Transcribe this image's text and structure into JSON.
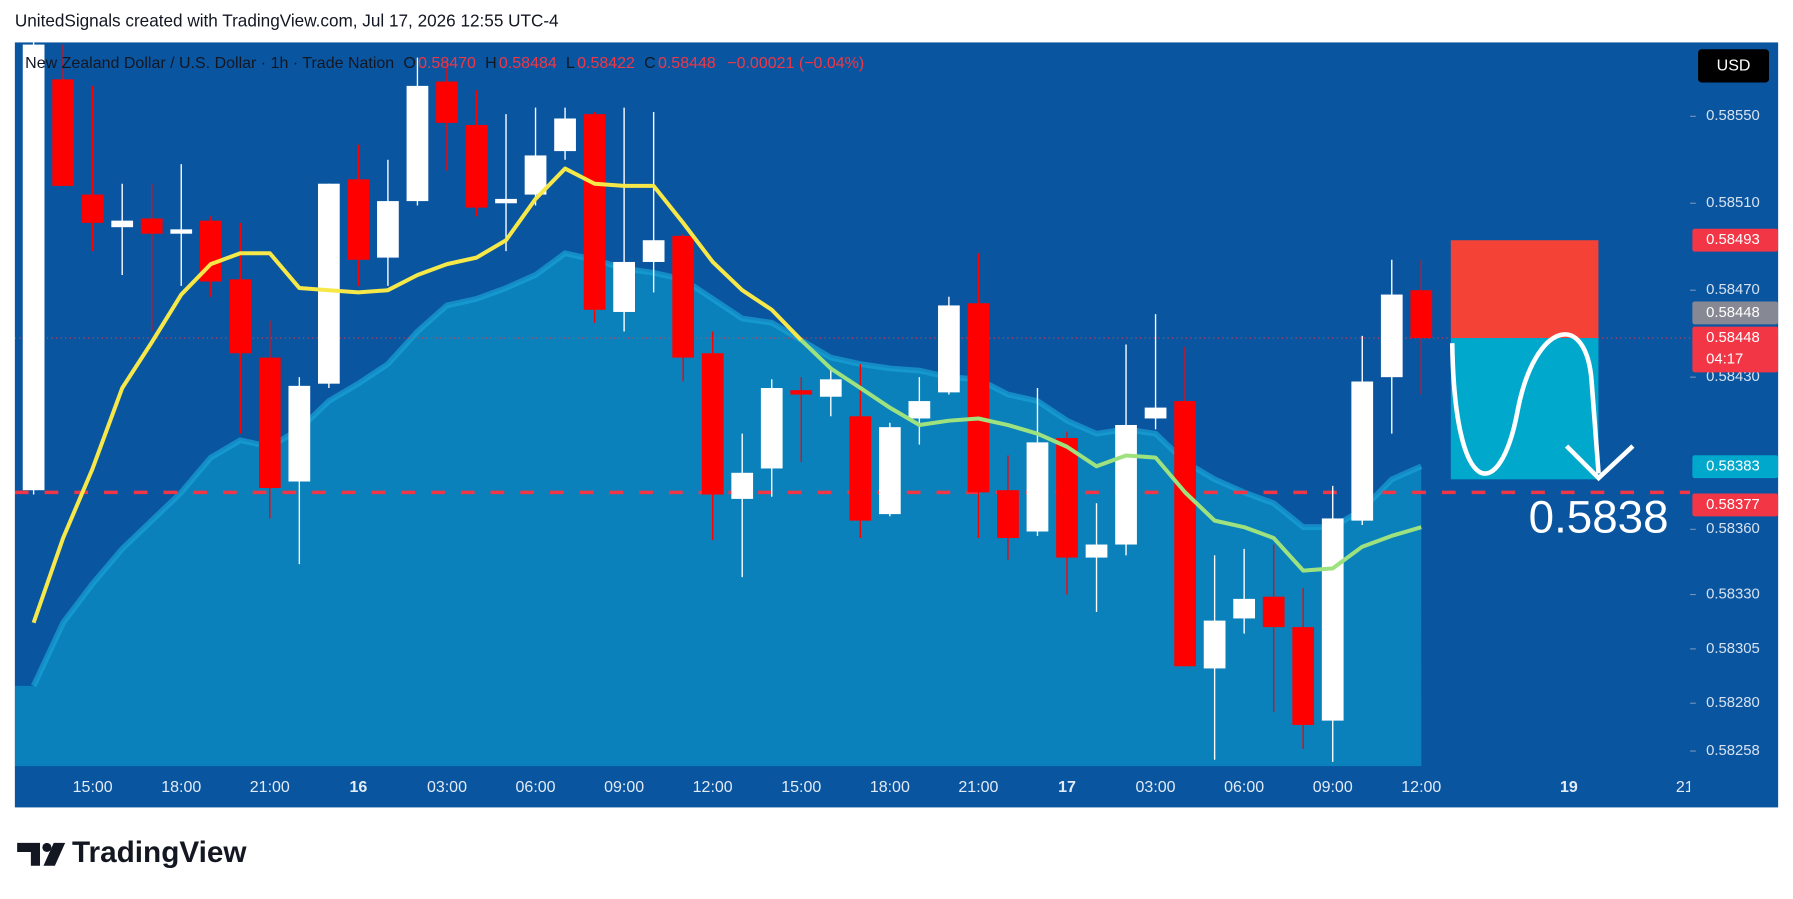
{
  "chart_data": {
    "type": "candlestick",
    "attribution": "UnitedSignals created with TradingView.com, Jul 17, 2026 12:55 UTC-4",
    "title": "New Zealand Dollar / U.S. Dollar · 1h · Trade Nation",
    "ohlc_header": [
      {
        "label": "O",
        "value": "0.58470"
      },
      {
        "label": "H",
        "value": "0.58484"
      },
      {
        "label": "L",
        "value": "0.58422"
      },
      {
        "label": "C",
        "value": "0.58448"
      }
    ],
    "change": "−0.00021 (−0.04%)",
    "currency": "USD",
    "brand": "TradingView",
    "annotation": "0.5838",
    "categories": [
      null,
      null,
      "15:00",
      null,
      null,
      "18:00",
      null,
      null,
      "21:00",
      null,
      null,
      "16",
      null,
      null,
      "03:00",
      null,
      null,
      "06:00",
      null,
      null,
      "09:00",
      null,
      null,
      "12:00",
      null,
      null,
      "15:00",
      null,
      null,
      "18:00",
      null,
      null,
      "21:00",
      null,
      null,
      "17",
      null,
      null,
      "03:00",
      null,
      null,
      "06:00",
      null,
      null,
      "09:00",
      null,
      null,
      "12:00",
      null,
      null,
      null,
      null,
      "19",
      null,
      null,
      null,
      "21:"
    ],
    "open": [
      0.58378,
      0.58567,
      0.58514,
      0.58499,
      0.58503,
      0.58496,
      0.58502,
      0.58475,
      0.58439,
      0.58382,
      0.58427,
      0.58521,
      0.58485,
      0.58511,
      0.58566,
      0.58546,
      0.5851,
      0.58514,
      0.58534,
      0.58551,
      0.5846,
      0.58483,
      0.58495,
      0.58441,
      0.58374,
      0.58388,
      0.58424,
      0.58421,
      0.58412,
      0.58367,
      0.58411,
      0.58423,
      0.58464,
      0.58378,
      0.58359,
      0.58402,
      0.58347,
      0.58353,
      0.58411,
      0.58419,
      0.58296,
      0.58319,
      0.58329,
      0.58315,
      0.58272,
      0.58364,
      0.5843,
      0.5847,
      null,
      null,
      null,
      null,
      null,
      null,
      null,
      null,
      null
    ],
    "high": [
      0.58584,
      0.58583,
      0.58564,
      0.58519,
      0.58519,
      0.58528,
      0.58504,
      0.58501,
      0.58456,
      0.5843,
      0.58519,
      0.58537,
      0.5853,
      0.58577,
      0.58575,
      0.58562,
      0.58551,
      0.58554,
      0.58554,
      0.58552,
      0.58554,
      0.58552,
      0.58496,
      0.58451,
      0.58404,
      0.58429,
      0.5843,
      0.58435,
      0.58436,
      0.58409,
      0.5843,
      0.58467,
      0.58487,
      0.58394,
      0.58425,
      0.58405,
      0.58372,
      0.58445,
      0.58459,
      0.58444,
      0.58348,
      0.58351,
      0.58353,
      0.58333,
      0.5838,
      0.58449,
      0.58484,
      0.58484,
      null,
      null,
      null,
      null,
      null,
      null,
      null,
      null,
      null
    ],
    "low": [
      0.58376,
      0.58518,
      0.58488,
      0.58477,
      0.58451,
      0.58472,
      0.58467,
      0.58404,
      0.58365,
      0.58344,
      0.58425,
      0.58472,
      0.58472,
      0.58509,
      0.58525,
      0.58504,
      0.58488,
      0.58509,
      0.5853,
      0.58455,
      0.58451,
      0.58469,
      0.58428,
      0.58355,
      0.58338,
      0.58375,
      0.58391,
      0.58412,
      0.58356,
      0.58366,
      0.58399,
      0.58422,
      0.58356,
      0.58346,
      0.58357,
      0.5833,
      0.58322,
      0.58348,
      0.58406,
      0.58297,
      0.58254,
      0.58312,
      0.58276,
      0.58259,
      0.58253,
      0.58362,
      0.58404,
      0.58422,
      null,
      null,
      null,
      null,
      null,
      null,
      null,
      null,
      null
    ],
    "close": [
      0.58583,
      0.58518,
      0.58501,
      0.58502,
      0.58496,
      0.58498,
      0.58474,
      0.58441,
      0.58379,
      0.58426,
      0.58519,
      0.58484,
      0.58511,
      0.58564,
      0.58547,
      0.58508,
      0.58512,
      0.58532,
      0.58549,
      0.58461,
      0.58483,
      0.58493,
      0.58439,
      0.58376,
      0.58386,
      0.58425,
      0.58422,
      0.58429,
      0.58364,
      0.58407,
      0.58419,
      0.58463,
      0.58377,
      0.58356,
      0.584,
      0.58347,
      0.58353,
      0.58408,
      0.58416,
      0.58297,
      0.58318,
      0.58328,
      0.58315,
      0.5827,
      0.58365,
      0.58428,
      0.58468,
      0.58448,
      null,
      null,
      null,
      null,
      null,
      null,
      null,
      null,
      null
    ],
    "up_color": "#ffffff",
    "down_color": "#ff0000",
    "area": {
      "color": "#0a86bd",
      "edge_color": "#1aa3d6",
      "values": [
        0.58288,
        0.58317,
        0.58335,
        0.58351,
        0.58364,
        0.58377,
        0.58393,
        0.58401,
        0.58398,
        0.58406,
        0.58419,
        0.58427,
        0.58436,
        0.58451,
        0.58463,
        0.58466,
        0.58471,
        0.58477,
        0.58487,
        0.58484,
        0.5848,
        0.58478,
        0.58475,
        0.58466,
        0.58457,
        0.58455,
        0.58447,
        0.58439,
        0.58436,
        0.58434,
        0.58433,
        0.5843,
        0.58429,
        0.58422,
        0.58419,
        0.5841,
        0.58404,
        0.58406,
        0.58404,
        0.58391,
        0.58383,
        0.58377,
        0.58372,
        0.58361,
        0.58361,
        0.58369,
        0.58383,
        0.58389,
        null,
        null,
        null,
        null,
        null,
        null,
        null,
        null,
        null
      ]
    },
    "lines": [
      {
        "color": "#f7e84a",
        "values": [
          0.58317,
          0.58356,
          0.58388,
          0.58425,
          0.58446,
          0.58468,
          0.58482,
          0.58487,
          0.58487,
          0.58471,
          0.5847,
          0.58469,
          0.5847,
          0.58477,
          0.58482,
          0.58485,
          0.58493,
          0.58512,
          0.58526,
          0.58519,
          0.58518,
          0.58518,
          0.58501,
          0.58483,
          0.5847,
          0.58461,
          0.58447,
          null,
          null,
          null,
          null,
          null,
          null,
          null,
          null,
          null,
          null,
          null,
          null,
          null,
          null,
          null,
          null,
          null,
          null,
          null,
          null,
          null,
          null,
          null,
          null,
          null,
          null,
          null,
          null,
          null,
          null
        ]
      },
      {
        "color": "#9ee27f",
        "values": [
          null,
          null,
          null,
          null,
          null,
          null,
          null,
          null,
          null,
          null,
          null,
          null,
          null,
          null,
          null,
          null,
          null,
          null,
          null,
          null,
          null,
          null,
          null,
          null,
          null,
          null,
          0.58447,
          0.58434,
          0.58425,
          0.58416,
          0.58408,
          0.5841,
          0.58411,
          0.58408,
          0.58404,
          0.58398,
          0.58389,
          0.58394,
          0.58393,
          0.58377,
          0.58364,
          0.58361,
          0.58356,
          0.58341,
          0.58342,
          0.58352,
          0.58357,
          0.58361,
          null,
          null,
          null,
          null,
          null,
          null,
          null,
          null,
          null
        ]
      }
    ],
    "hline": {
      "value": 0.58377,
      "color": "#f23645"
    },
    "position": {
      "stop": 0.58493,
      "entry": 0.58448,
      "target": 0.58383,
      "stop_color": "#f44336",
      "target_color": "#00a9cc"
    },
    "price_labels": [
      {
        "value": 0.58493,
        "color": "#f23645"
      },
      {
        "value": 0.58448,
        "color": "#868993"
      },
      {
        "value": 0.58448,
        "color": "#f23645",
        "countdown": "04:17"
      },
      {
        "value": 0.58383,
        "color": "#00a9cc"
      },
      {
        "value": 0.58377,
        "color": "#f23645"
      }
    ],
    "ylim": [
      0.58251,
      0.58584
    ],
    "yticks": [
      {
        "value": 0.5855,
        "label": "0.58550"
      },
      {
        "value": 0.5851,
        "label": "0.58510"
      },
      {
        "value": 0.5847,
        "label": "0.58470"
      },
      {
        "value": 0.5843,
        "label": "0.58430"
      },
      {
        "value": 0.5836,
        "label": "0.58360"
      },
      {
        "value": 0.5833,
        "label": "0.58330"
      },
      0.58305,
      {
        "value": 0.5828,
        "label": "0.58280"
      },
      0.58258
    ],
    "grid": false
  }
}
